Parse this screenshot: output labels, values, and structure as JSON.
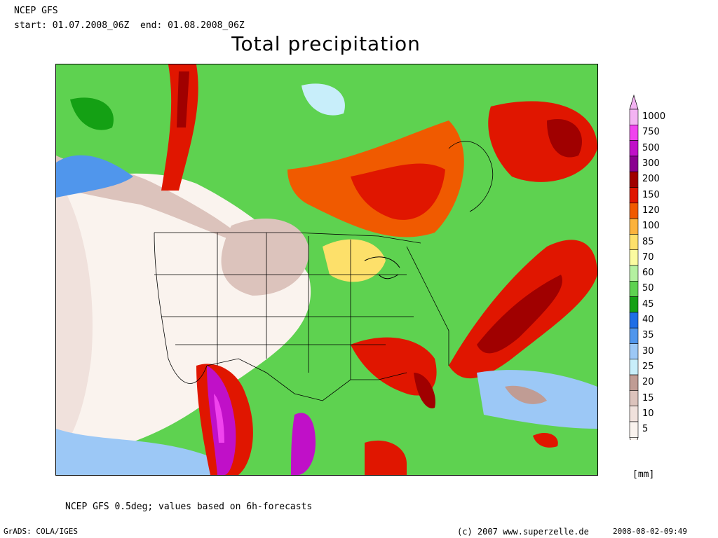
{
  "header": {
    "model": "NCEP GFS",
    "period": "start: 01.07.2008_06Z  end: 01.08.2008_06Z"
  },
  "title": "Total precipitation",
  "legend": {
    "unit": "[mm]",
    "levels": [
      {
        "label": "1000",
        "color": "#f3b3f2"
      },
      {
        "label": "750",
        "color": "#f043ee"
      },
      {
        "label": "500",
        "color": "#c010c8"
      },
      {
        "label": "300",
        "color": "#8a0090"
      },
      {
        "label": "200",
        "color": "#a00000"
      },
      {
        "label": "150",
        "color": "#e01600"
      },
      {
        "label": "120",
        "color": "#f05a00"
      },
      {
        "label": "100",
        "color": "#fbb23c"
      },
      {
        "label": "85",
        "color": "#fde06a"
      },
      {
        "label": "70",
        "color": "#fbfba0"
      },
      {
        "label": "60",
        "color": "#b4f0a0"
      },
      {
        "label": "50",
        "color": "#5ed250"
      },
      {
        "label": "45",
        "color": "#14a014"
      },
      {
        "label": "40",
        "color": "#1e6ee6"
      },
      {
        "label": "35",
        "color": "#5096ec"
      },
      {
        "label": "30",
        "color": "#9cc8f6"
      },
      {
        "label": "25",
        "color": "#c8eefa"
      },
      {
        "label": "20",
        "color": "#c09c94"
      },
      {
        "label": "15",
        "color": "#dcc3bc"
      },
      {
        "label": "10",
        "color": "#f0e1dc"
      },
      {
        "label": "5",
        "color": "#faf3ee"
      }
    ]
  },
  "footnote": "NCEP GFS 0.5deg; values based on 6h-forecasts",
  "software": "GrADS: COLA/IGES",
  "copyright": "(c) 2007 www.superzelle.de",
  "timestamp": "2008-08-02-09:49"
}
